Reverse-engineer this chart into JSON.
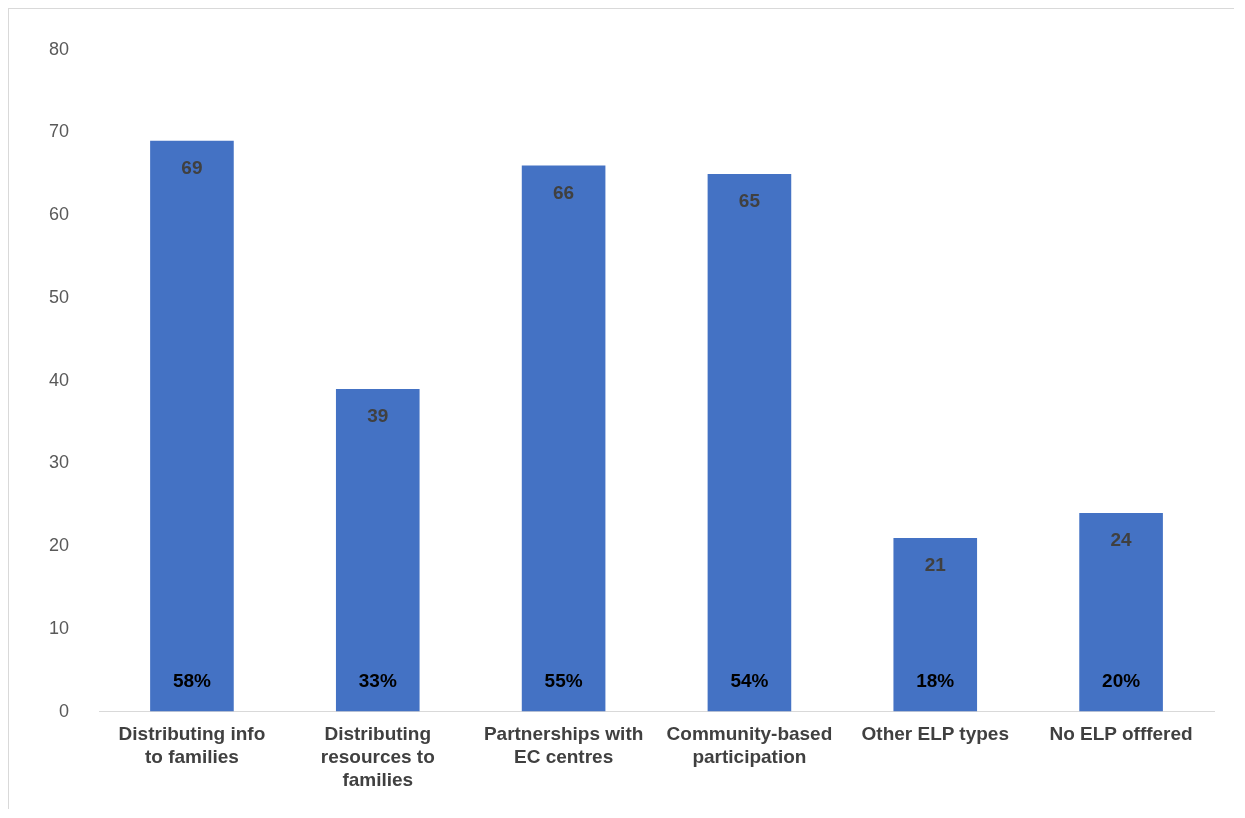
{
  "chart_data": {
    "type": "bar",
    "categories": [
      "Distributing info to families",
      "Distributing resources to families",
      "Partnerships with EC centres",
      "Community-based participation",
      "Other ELP types",
      "No ELP offfered"
    ],
    "values": [
      69,
      39,
      66,
      65,
      21,
      24
    ],
    "color": "#4472c4",
    "ylim": [
      0,
      80
    ],
    "yticks": [
      0,
      10,
      20,
      30,
      40,
      50,
      60,
      70,
      80
    ],
    "grid": false,
    "legend": false,
    "data_labels": true,
    "annotations": [
      "58%",
      "33%",
      "55%",
      "54%",
      "18%",
      "20%"
    ]
  }
}
